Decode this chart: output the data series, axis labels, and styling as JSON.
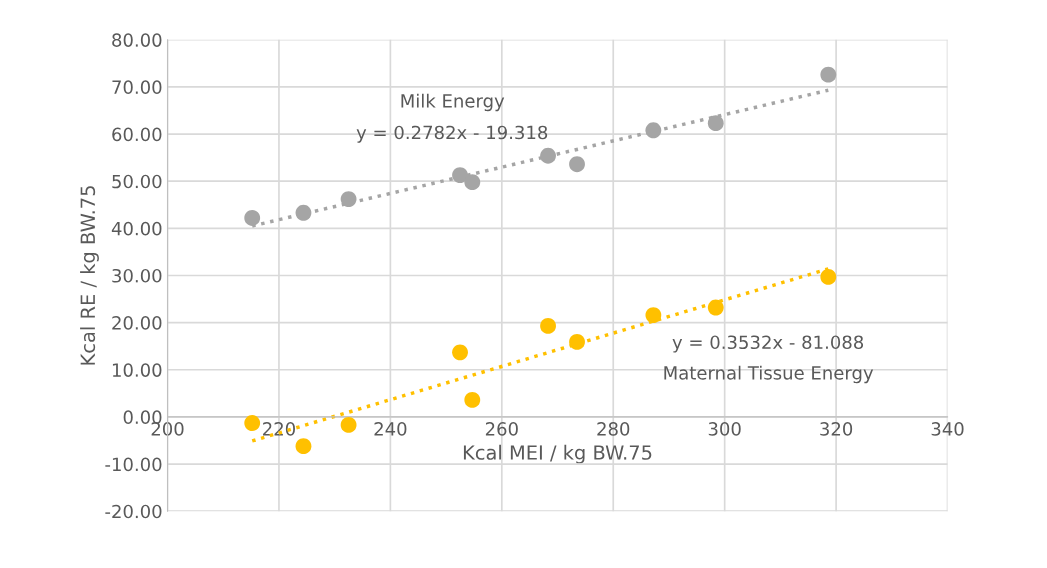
{
  "chart_data": {
    "type": "scatter",
    "xlabel": "Kcal MEI / kg BW.75",
    "ylabel": "Kcal RE / kg BW.75",
    "xlim": [
      200,
      340
    ],
    "xticks": [
      200,
      220,
      240,
      260,
      280,
      300,
      320,
      340
    ],
    "ylim": [
      -20,
      80
    ],
    "yticks": [
      {
        "value": -20,
        "label": "-20.00"
      },
      {
        "value": -10,
        "label": "-10.00"
      },
      {
        "value": 0,
        "label": "0.00"
      },
      {
        "value": 10,
        "label": "10.00"
      },
      {
        "value": 20,
        "label": "20.00"
      },
      {
        "value": 30,
        "label": "30.00"
      },
      {
        "value": 40,
        "label": "40.00"
      },
      {
        "value": 50,
        "label": "50.00"
      },
      {
        "value": 60,
        "label": "60.00"
      },
      {
        "value": 70,
        "label": "70.00"
      },
      {
        "value": 80,
        "label": "80.00"
      }
    ],
    "grid": true,
    "marker": "circle",
    "series": [
      {
        "color": "#a5a5a5",
        "x": [
          215.2,
          224.4,
          232.5,
          252.5,
          254.7,
          268.3,
          273.5,
          287.2,
          298.4,
          318.6
        ],
        "values": [
          42.2,
          43.3,
          46.2,
          51.3,
          49.8,
          55.4,
          53.6,
          60.8,
          62.3,
          72.6
        ]
      },
      {
        "color": "#ffc000",
        "x": [
          215.2,
          224.4,
          232.5,
          252.5,
          254.7,
          268.3,
          273.5,
          287.2,
          298.4,
          318.6
        ],
        "values": [
          -1.3,
          -6.2,
          -1.7,
          13.7,
          3.6,
          19.3,
          15.9,
          21.6,
          23.2,
          29.7
        ]
      },
      {
        "type": "line",
        "color": "#a5a5a5",
        "line_style": "dotted",
        "marker": "none",
        "x": [
          215.2,
          318.6
        ],
        "values": [
          40.5,
          69.3
        ]
      },
      {
        "type": "line",
        "color": "#ffc000",
        "line_style": "dotted",
        "marker": "none",
        "x": [
          215.2,
          318.6
        ],
        "values": [
          -5.1,
          31.4
        ]
      }
    ],
    "annotations": [
      "Milk Energy",
      "y = 0.2782x - 19.318",
      "y = 0.3532x - 81.088",
      "Maternal Tissue Energy"
    ]
  }
}
